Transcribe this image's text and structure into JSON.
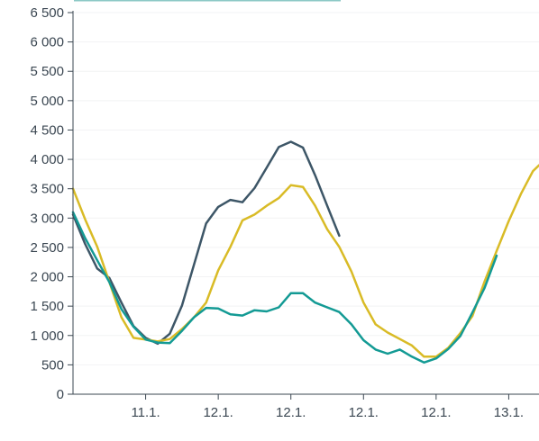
{
  "chart_data": {
    "type": "line",
    "title": "",
    "xlabel": "",
    "ylabel": "",
    "ylim": [
      0,
      6500
    ],
    "yticks": [
      {
        "value": 0,
        "label": "0"
      },
      {
        "value": 500,
        "label": "500"
      },
      {
        "value": 1000,
        "label": "1 000"
      },
      {
        "value": 1500,
        "label": "1 500"
      },
      {
        "value": 2000,
        "label": "2 000"
      },
      {
        "value": 2500,
        "label": "2 500"
      },
      {
        "value": 3000,
        "label": "3 000"
      },
      {
        "value": 3500,
        "label": "3 500"
      },
      {
        "value": 4000,
        "label": "4 000"
      },
      {
        "value": 4500,
        "label": "4 500"
      },
      {
        "value": 5000,
        "label": "5 000"
      },
      {
        "value": 5500,
        "label": "5 500"
      },
      {
        "value": 6000,
        "label": "6 000"
      },
      {
        "value": 6500,
        "label": "6 500"
      }
    ],
    "xlim": [
      0,
      38.5
    ],
    "xticks": [
      {
        "value": 6,
        "label": "11.1."
      },
      {
        "value": 12,
        "label": "12.1."
      },
      {
        "value": 18,
        "label": "12.1."
      },
      {
        "value": 24,
        "label": "12.1."
      },
      {
        "value": 30,
        "label": "12.1."
      },
      {
        "value": 36,
        "label": "13.1."
      }
    ],
    "grid": true,
    "series": [
      {
        "color": "#3d5667",
        "x": [
          0,
          1,
          2,
          3,
          4,
          5,
          6,
          7,
          8,
          9,
          10,
          11,
          12,
          13,
          14,
          15,
          16,
          17,
          18,
          19,
          20,
          21,
          22
        ],
        "values": [
          3060,
          2560,
          2140,
          1980,
          1560,
          1160,
          960,
          860,
          1030,
          1510,
          2210,
          2910,
          3190,
          3310,
          3270,
          3510,
          3860,
          4210,
          4300,
          4200,
          3730,
          3210,
          2700
        ]
      },
      {
        "color": "#d9bb26",
        "x": [
          0,
          1,
          2,
          3,
          4,
          5,
          6,
          7,
          8,
          9,
          10,
          11,
          12,
          13,
          14,
          15,
          16,
          17,
          18,
          19,
          20,
          21,
          22,
          23,
          24,
          25,
          26,
          27,
          28,
          29,
          30,
          31,
          32,
          33,
          34,
          35,
          36,
          37,
          38,
          38.5
        ],
        "values": [
          3500,
          2980,
          2510,
          1910,
          1310,
          960,
          930,
          900,
          940,
          1110,
          1310,
          1560,
          2110,
          2510,
          2960,
          3060,
          3210,
          3340,
          3560,
          3530,
          3210,
          2810,
          2510,
          2090,
          1560,
          1190,
          1050,
          940,
          830,
          640,
          640,
          790,
          1040,
          1330,
          1920,
          2440,
          2950,
          3410,
          3800,
          3900
        ]
      },
      {
        "color": "#139a94",
        "x": [
          0,
          1,
          2,
          3,
          4,
          5,
          6,
          7,
          8,
          9,
          10,
          11,
          12,
          13,
          14,
          15,
          16,
          17,
          18,
          19,
          20,
          21,
          22,
          23,
          24,
          25,
          26,
          27,
          28,
          29,
          30,
          31,
          32,
          33,
          34,
          35
        ],
        "values": [
          3100,
          2660,
          2280,
          1910,
          1450,
          1150,
          930,
          880,
          870,
          1080,
          1310,
          1470,
          1460,
          1360,
          1340,
          1430,
          1410,
          1480,
          1720,
          1720,
          1560,
          1480,
          1400,
          1190,
          920,
          760,
          690,
          760,
          640,
          540,
          610,
          770,
          990,
          1390,
          1810,
          2360
        ]
      }
    ]
  }
}
